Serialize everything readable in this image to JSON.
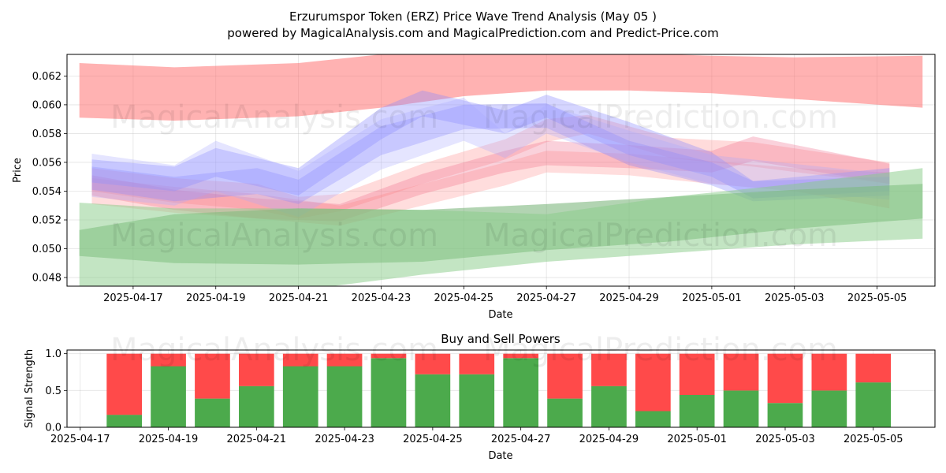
{
  "header": {
    "title": "Erzurumspor Token (ERZ) Price Wave Trend Analysis (May 05 )",
    "subtitle": "powered by MagicalAnalysis.com and MagicalPrediction.com and Predict-Price.com"
  },
  "watermarks": [
    "MagicalAnalysis.com",
    "MagicalPrediction.com"
  ],
  "chart_data": [
    {
      "type": "area",
      "title": "",
      "xlabel": "Date",
      "ylabel": "Price",
      "xlim": [
        "2025-04-15.4",
        "2025-05-06.4"
      ],
      "ylim": [
        0.0474,
        0.0635
      ],
      "grid": true,
      "x_tick_labels": [
        "2025-04-17",
        "2025-04-19",
        "2025-04-21",
        "2025-04-23",
        "2025-04-25",
        "2025-04-27",
        "2025-04-29",
        "2025-05-01",
        "2025-05-03",
        "2025-05-05"
      ],
      "y_tick_labels": [
        "0.048",
        "0.050",
        "0.052",
        "0.054",
        "0.056",
        "0.058",
        "0.060",
        "0.062"
      ],
      "series": [
        {
          "color": "#ff6666",
          "alpha": 0.5,
          "x": [
            "2025-04-15.7",
            "2025-04-18",
            "2025-04-21",
            "2025-04-23",
            "2025-04-25",
            "2025-04-27",
            "2025-04-29",
            "2025-05-01",
            "2025-05-03",
            "2025-05-06.1"
          ],
          "upper": [
            0.0629,
            0.0626,
            0.0629,
            0.0635,
            0.0636,
            0.0637,
            0.0636,
            0.0634,
            0.0633,
            0.0634
          ],
          "lower": [
            0.0591,
            0.0589,
            0.0592,
            0.0598,
            0.0606,
            0.061,
            0.061,
            0.0608,
            0.0604,
            0.0598
          ]
        },
        {
          "color": "#ff9999",
          "alpha": 0.35,
          "x": [
            "2025-04-16",
            "2025-04-18",
            "2025-04-20",
            "2025-04-21",
            "2025-04-22",
            "2025-04-24",
            "2025-04-26",
            "2025-04-27",
            "2025-04-28",
            "2025-04-30",
            "2025-05-02",
            "2025-05-05.3"
          ],
          "upper": [
            0.0556,
            0.0549,
            0.0545,
            0.0536,
            0.0538,
            0.0559,
            0.0576,
            0.059,
            0.0593,
            0.0577,
            0.0574,
            0.056
          ],
          "lower": [
            0.054,
            0.0532,
            0.0527,
            0.0521,
            0.0526,
            0.0545,
            0.0562,
            0.0574,
            0.058,
            0.0563,
            0.0557,
            0.0545
          ]
        },
        {
          "color": "#ee6688",
          "alpha": 0.3,
          "x": [
            "2025-04-16",
            "2025-04-18",
            "2025-04-20",
            "2025-04-22",
            "2025-04-24",
            "2025-04-26",
            "2025-04-27",
            "2025-04-29",
            "2025-05-01",
            "2025-05-02",
            "2025-05-05.3"
          ],
          "upper": [
            0.0551,
            0.0541,
            0.0535,
            0.0531,
            0.0552,
            0.0568,
            0.0575,
            0.0572,
            0.0568,
            0.0578,
            0.0559
          ],
          "lower": [
            0.0537,
            0.0527,
            0.0521,
            0.0519,
            0.0538,
            0.0553,
            0.0558,
            0.0556,
            0.0553,
            0.0561,
            0.0545
          ]
        },
        {
          "color": "#ff7777",
          "alpha": 0.25,
          "x": [
            "2025-04-16",
            "2025-04-18",
            "2025-04-20",
            "2025-04-22",
            "2025-04-24",
            "2025-04-26",
            "2025-04-27",
            "2025-04-29",
            "2025-05-01",
            "2025-05-03",
            "2025-05-05.3"
          ],
          "upper": [
            0.0549,
            0.0543,
            0.0538,
            0.053,
            0.0545,
            0.056,
            0.0568,
            0.0566,
            0.0561,
            0.0556,
            0.0553
          ],
          "lower": [
            0.0531,
            0.0525,
            0.0521,
            0.0516,
            0.053,
            0.0544,
            0.0553,
            0.0551,
            0.0545,
            0.054,
            0.0528
          ]
        },
        {
          "color": "#8888ff",
          "alpha": 0.35,
          "x": [
            "2025-04-16",
            "2025-04-18",
            "2025-04-19",
            "2025-04-21",
            "2025-04-23",
            "2025-04-24",
            "2025-04-26",
            "2025-04-27",
            "2025-04-29",
            "2025-05-01",
            "2025-05-02",
            "2025-05-05.3"
          ],
          "upper": [
            0.0562,
            0.0557,
            0.057,
            0.0556,
            0.0598,
            0.061,
            0.0596,
            0.0607,
            0.0588,
            0.0567,
            0.0547,
            0.0556
          ],
          "lower": [
            0.0546,
            0.054,
            0.055,
            0.0537,
            0.0576,
            0.0592,
            0.058,
            0.0591,
            0.0565,
            0.055,
            0.0535,
            0.054
          ]
        },
        {
          "color": "#7777ff",
          "alpha": 0.3,
          "x": [
            "2025-04-16",
            "2025-04-18",
            "2025-04-20",
            "2025-04-21",
            "2025-04-23",
            "2025-04-25",
            "2025-04-27",
            "2025-04-29",
            "2025-05-01",
            "2025-05-02",
            "2025-05-05.3"
          ],
          "upper": [
            0.0557,
            0.055,
            0.0556,
            0.0548,
            0.0585,
            0.06,
            0.0601,
            0.0575,
            0.056,
            0.0547,
            0.055
          ],
          "lower": [
            0.0541,
            0.0533,
            0.0538,
            0.0531,
            0.0565,
            0.0583,
            0.0584,
            0.0558,
            0.0544,
            0.0533,
            0.0537
          ]
        },
        {
          "color": "#aaaaff",
          "alpha": 0.3,
          "x": [
            "2025-04-16",
            "2025-04-18",
            "2025-04-19",
            "2025-04-21",
            "2025-04-23",
            "2025-04-25",
            "2025-04-26",
            "2025-04-27",
            "2025-04-29",
            "2025-05-01",
            "2025-05-05.3"
          ],
          "upper": [
            0.0566,
            0.0558,
            0.0575,
            0.0554,
            0.059,
            0.0605,
            0.058,
            0.06,
            0.0582,
            0.0565,
            0.0552
          ],
          "lower": [
            0.0536,
            0.053,
            0.054,
            0.0522,
            0.0555,
            0.0575,
            0.0563,
            0.058,
            0.056,
            0.0545,
            0.0534
          ]
        },
        {
          "color": "#66aa66",
          "alpha": 0.5,
          "x": [
            "2025-04-15.7",
            "2025-04-18",
            "2025-04-21",
            "2025-04-24",
            "2025-04-27",
            "2025-04-30",
            "2025-05-03",
            "2025-05-06.1"
          ],
          "upper": [
            0.0513,
            0.0524,
            0.0528,
            0.0527,
            0.0531,
            0.0536,
            0.0541,
            0.0545
          ],
          "lower": [
            0.0495,
            0.049,
            0.0489,
            0.0491,
            0.0499,
            0.0505,
            0.0514,
            0.0521
          ]
        },
        {
          "color": "#88cc88",
          "alpha": 0.5,
          "x": [
            "2025-04-15.7",
            "2025-04-18",
            "2025-04-21",
            "2025-04-24",
            "2025-04-27",
            "2025-04-30",
            "2025-05-03",
            "2025-05-06.1"
          ],
          "upper": [
            0.0532,
            0.0528,
            0.0528,
            0.0527,
            0.0524,
            0.0536,
            0.0545,
            0.0556
          ],
          "lower": [
            0.047,
            0.0466,
            0.0471,
            0.0482,
            0.0491,
            0.0497,
            0.0503,
            0.0507
          ]
        }
      ]
    },
    {
      "type": "bar",
      "title": "Buy and Sell Powers",
      "xlabel": "Date",
      "ylabel": "Signal Strength",
      "xlim": [
        "2025-04-16.7",
        "2025-05-06.4"
      ],
      "ylim": [
        0,
        1.05
      ],
      "grid": true,
      "x_tick_labels": [
        "2025-04-17",
        "2025-04-19",
        "2025-04-21",
        "2025-04-23",
        "2025-04-25",
        "2025-04-27",
        "2025-04-29",
        "2025-05-01",
        "2025-05-03",
        "2025-05-05"
      ],
      "y_tick_labels": [
        "0.0",
        "0.5",
        "1.0"
      ],
      "categories": [
        "2025-04-18",
        "2025-04-19",
        "2025-04-20",
        "2025-04-21",
        "2025-04-22",
        "2025-04-23",
        "2025-04-24",
        "2025-04-25",
        "2025-04-26",
        "2025-04-27",
        "2025-04-28",
        "2025-04-29",
        "2025-04-30",
        "2025-05-01",
        "2025-05-02",
        "2025-05-03",
        "2025-05-04",
        "2025-05-05"
      ],
      "series": [
        {
          "color": "#4caa4c",
          "values": [
            0.17,
            0.83,
            0.39,
            0.56,
            0.83,
            0.83,
            0.94,
            0.72,
            0.72,
            0.94,
            0.39,
            0.56,
            0.22,
            0.44,
            0.5,
            0.33,
            0.5,
            0.61
          ]
        },
        {
          "color": "#ff4a4a",
          "values": [
            0.83,
            0.17,
            0.61,
            0.44,
            0.17,
            0.17,
            0.06,
            0.28,
            0.28,
            0.06,
            0.61,
            0.44,
            0.78,
            0.56,
            0.5,
            0.67,
            0.5,
            0.39
          ]
        }
      ]
    }
  ]
}
